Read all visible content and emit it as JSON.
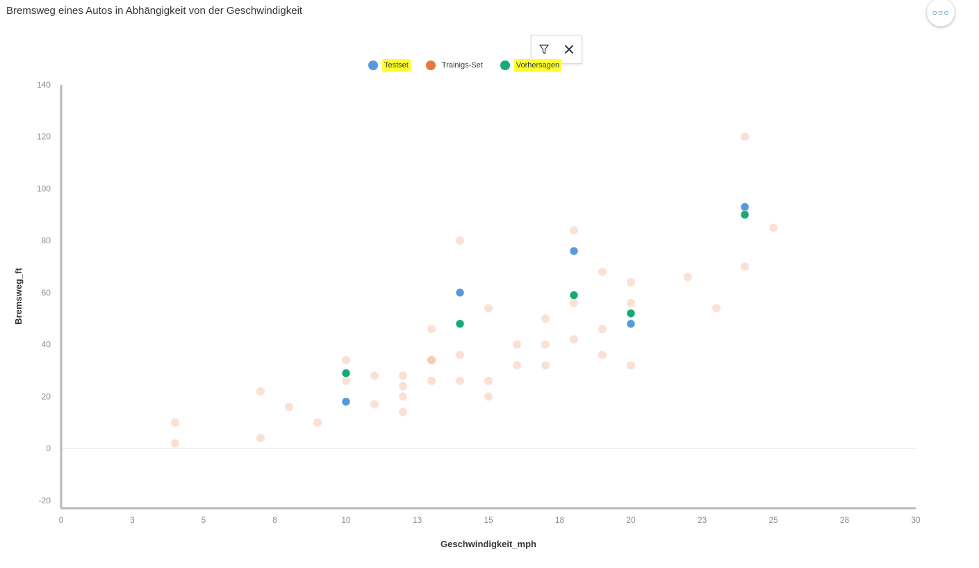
{
  "header": {
    "title": "Bremsweg eines Autos in Abhängigkeit von der Geschwindigkeit",
    "more_icon": "more-icon"
  },
  "toolbar": {
    "filter_icon": "filter-icon",
    "close_icon": "close-icon"
  },
  "chart_data": {
    "type": "scatter",
    "title": "Bremsweg eines Autos in Abhängigkeit von der Geschwindigkeit",
    "xlabel": "Geschwindigkeit_mph",
    "ylabel": "Bremsweg_ft",
    "xlim": [
      0,
      30
    ],
    "ylim": [
      -23,
      140
    ],
    "x_ticks": [
      0,
      2.5,
      5,
      7.5,
      10,
      12.5,
      15,
      17.5,
      20,
      22.5,
      25,
      27.5,
      30
    ],
    "x_tick_labels": [
      "0",
      "3",
      "5",
      "8",
      "10",
      "13",
      "15",
      "18",
      "20",
      "23",
      "25",
      "28",
      "30"
    ],
    "y_ticks": [
      -20,
      0,
      20,
      40,
      60,
      80,
      100,
      120,
      140
    ],
    "y_tick_labels": [
      "-20",
      "0",
      "20",
      "40",
      "60",
      "80",
      "100",
      "120",
      "140"
    ],
    "grid": false,
    "legend_position": "top-center",
    "series": [
      {
        "name": "Trainigs-Set",
        "color": "#e9773c",
        "highlighted": false,
        "points": [
          [
            4,
            2
          ],
          [
            4,
            10
          ],
          [
            7,
            4
          ],
          [
            7,
            22
          ],
          [
            8,
            16
          ],
          [
            9,
            10
          ],
          [
            10,
            26
          ],
          [
            10,
            34
          ],
          [
            11,
            17
          ],
          [
            11,
            28
          ],
          [
            12,
            14
          ],
          [
            12,
            20
          ],
          [
            12,
            24
          ],
          [
            12,
            28
          ],
          [
            13,
            26
          ],
          [
            13,
            34
          ],
          [
            13,
            34
          ],
          [
            13,
            46
          ],
          [
            14,
            26
          ],
          [
            14,
            36
          ],
          [
            14,
            80
          ],
          [
            15,
            20
          ],
          [
            15,
            26
          ],
          [
            15,
            54
          ],
          [
            16,
            32
          ],
          [
            16,
            40
          ],
          [
            17,
            32
          ],
          [
            17,
            40
          ],
          [
            17,
            50
          ],
          [
            18,
            42
          ],
          [
            18,
            56
          ],
          [
            18,
            84
          ],
          [
            19,
            36
          ],
          [
            19,
            46
          ],
          [
            19,
            68
          ],
          [
            20,
            32
          ],
          [
            20,
            56
          ],
          [
            20,
            64
          ],
          [
            22,
            66
          ],
          [
            23,
            54
          ],
          [
            24,
            70
          ],
          [
            24,
            92
          ],
          [
            24,
            120
          ],
          [
            25,
            85
          ]
        ]
      },
      {
        "name": "Testset",
        "color": "#5899da",
        "highlighted": true,
        "points": [
          [
            10,
            18
          ],
          [
            14,
            60
          ],
          [
            18,
            76
          ],
          [
            20,
            48
          ],
          [
            24,
            93
          ]
        ]
      },
      {
        "name": "Vorhersagen",
        "color": "#19a979",
        "highlighted": true,
        "points": [
          [
            10,
            29
          ],
          [
            14,
            48
          ],
          [
            18,
            59
          ],
          [
            20,
            52
          ],
          [
            24,
            90
          ]
        ]
      }
    ],
    "legend_order": [
      "Testset",
      "Trainigs-Set",
      "Vorhersagen"
    ]
  }
}
